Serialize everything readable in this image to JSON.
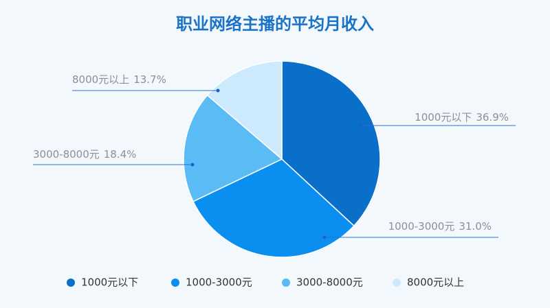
{
  "chart_data": {
    "type": "pie",
    "title": "职业网络主播的平均月收入",
    "categories": [
      "1000元以下",
      "1000-3000元",
      "3000-8000元",
      "8000元以上"
    ],
    "values": [
      36.9,
      31.0,
      18.4,
      13.7
    ],
    "value_labels": [
      "36.9%",
      "31.0%",
      "18.4%",
      "13.7%"
    ],
    "colors": [
      "#0a6fc9",
      "#0a8ff0",
      "#5bbcf5",
      "#cdeafc"
    ],
    "legend": "bottom"
  }
}
